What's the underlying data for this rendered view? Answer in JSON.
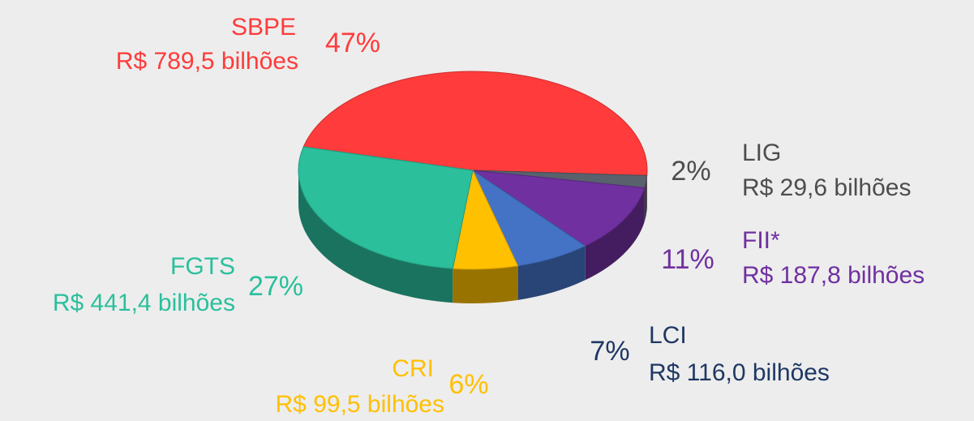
{
  "chart_data": {
    "type": "pie",
    "categories": [
      "SBPE",
      "LIG",
      "FII*",
      "LCI",
      "CRI",
      "FGTS"
    ],
    "values": [
      47,
      2,
      11,
      7,
      6,
      27
    ],
    "value_labels": [
      "47%",
      "2%",
      "11%",
      "7%",
      "6%",
      "27%"
    ],
    "amount_labels": [
      "R$ 789,5 bilhões",
      "R$ 29,6 bilhões",
      "R$ 187,8 bilhões",
      "R$ 116,0 bilhões",
      "R$ 99,5 bilhões",
      "R$ 441,4 bilhões"
    ],
    "colors": [
      "#ff3b3b",
      "#58616c",
      "#7030a0",
      "#4472c4",
      "#ffc000",
      "#2bbf9c"
    ],
    "label_colors": [
      "#ff3b3b",
      "#4d4d4d",
      "#7030a0",
      "#1f3864",
      "#ffc000",
      "#2bbf9c"
    ]
  }
}
